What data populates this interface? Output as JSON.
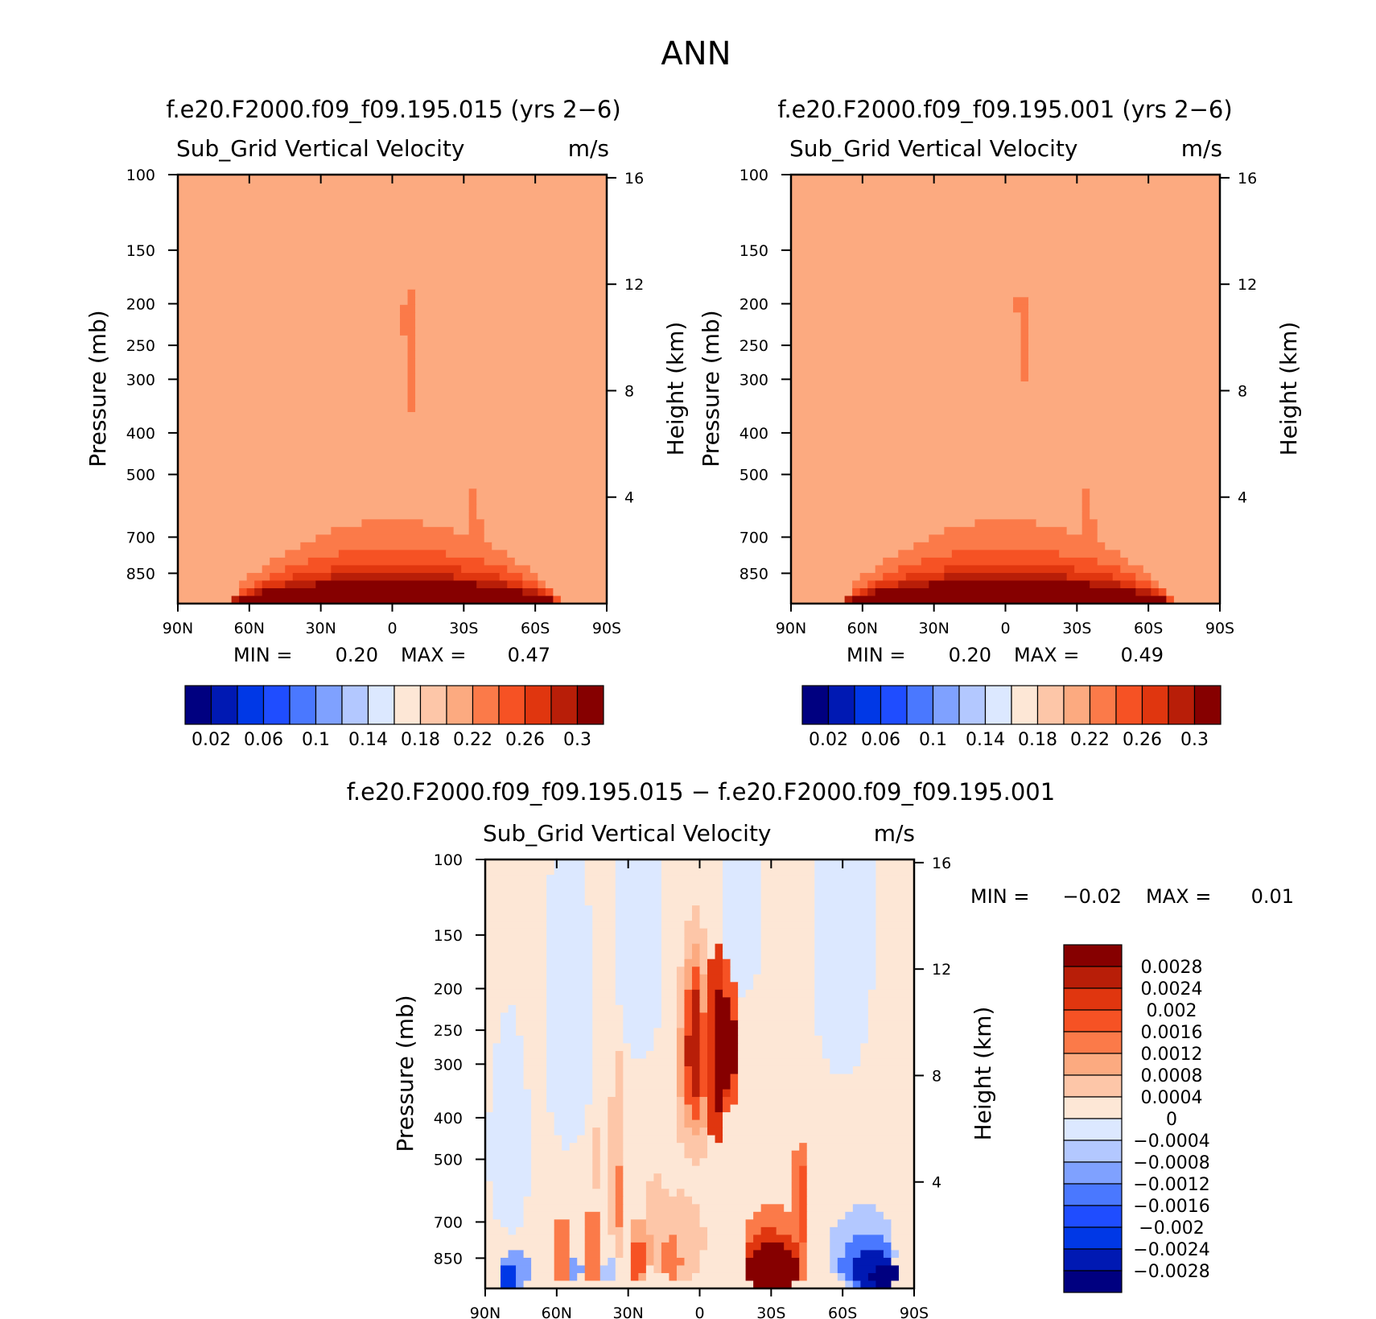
{
  "title": "ANN",
  "colormaps": {
    "abs": [
      "#000080",
      "#0019b3",
      "#0038e6",
      "#1f4dff",
      "#4a78ff",
      "#7fa1ff",
      "#b3c8ff",
      "#dce8ff",
      "#fde7d6",
      "#fdc6a8",
      "#fcaa80",
      "#fb7a49",
      "#f65224",
      "#e0360f",
      "#b81e08",
      "#860000"
    ],
    "diff": [
      "#000080",
      "#0019b3",
      "#0038e6",
      "#1f4dff",
      "#4a78ff",
      "#7fa1ff",
      "#b3c8ff",
      "#dce8ff",
      "#fde7d6",
      "#fdc6a8",
      "#fcaa80",
      "#fb7a49",
      "#f65224",
      "#e0360f",
      "#b81e08",
      "#860000"
    ]
  },
  "chart_data": [
    {
      "type": "heatmap",
      "panel": "case",
      "title": "f.e20.F2000.f09_f09.195.015 (yrs 2−6)",
      "variable": "Sub_Grid Vertical Velocity",
      "units": "m/s",
      "xlabel": "",
      "ylabel": "Pressure (mb)",
      "ylabel_right": "Height (km)",
      "x_ticks": [
        "90N",
        "60N",
        "30N",
        "0",
        "30S",
        "60S",
        "90S"
      ],
      "y_ticks": [
        100,
        150,
        200,
        250,
        300,
        400,
        500,
        700,
        850
      ],
      "ylim": [
        100,
        1000
      ],
      "height_ticks": [
        16,
        12,
        8,
        4
      ],
      "min_label": "MIN =",
      "min": "0.20",
      "max_label": "MAX =",
      "max": "0.47",
      "colorbar_levels": [
        0.02,
        0.04,
        0.06,
        0.08,
        0.1,
        0.12,
        0.14,
        0.16,
        0.18,
        0.2,
        0.22,
        0.24,
        0.26,
        0.28,
        0.3
      ],
      "colorbar_labels": [
        "0.02",
        "0.06",
        "0.1",
        "0.14",
        "0.18",
        "0.22",
        "0.26",
        "0.3"
      ],
      "field": {
        "base": 10,
        "jets": [
          {
            "lat": -8,
            "p_top": 185,
            "p_bot": 390,
            "w": 2.6,
            "level": 11
          },
          {
            "lat": -5.5,
            "p_top": 195,
            "p_bot": 260,
            "w": 1.4,
            "level": 11
          }
        ],
        "boundary": [
          {
            "lats": [
              -70,
              -50,
              -30,
              -12,
              12,
              30,
              50,
              68
            ],
            "levels": [
              11,
              12,
              13,
              14,
              15
            ],
            "p_tops": [
              640,
              745,
              810,
              850,
              880
            ]
          },
          {
            "lats": [
              -38,
              -34,
              -32
            ],
            "levels": [
              11
            ],
            "p_tops": [
              460
            ]
          }
        ]
      }
    },
    {
      "type": "heatmap",
      "panel": "control",
      "title": "f.e20.F2000.f09_f09.195.001 (yrs 2−6)",
      "variable": "Sub_Grid Vertical Velocity",
      "units": "m/s",
      "xlabel": "",
      "ylabel": "Pressure (mb)",
      "ylabel_right": "Height (km)",
      "x_ticks": [
        "90N",
        "60N",
        "30N",
        "0",
        "30S",
        "60S",
        "90S"
      ],
      "y_ticks": [
        100,
        150,
        200,
        250,
        300,
        400,
        500,
        700,
        850
      ],
      "ylim": [
        100,
        1000
      ],
      "height_ticks": [
        16,
        12,
        8,
        4
      ],
      "min_label": "MIN =",
      "min": "0.20",
      "max_label": "MAX =",
      "max": "0.49",
      "colorbar_levels": [
        0.02,
        0.04,
        0.06,
        0.08,
        0.1,
        0.12,
        0.14,
        0.16,
        0.18,
        0.2,
        0.22,
        0.24,
        0.26,
        0.28,
        0.3
      ],
      "colorbar_labels": [
        "0.02",
        "0.06",
        "0.1",
        "0.14",
        "0.18",
        "0.22",
        "0.26",
        "0.3"
      ],
      "field": {
        "base": 10,
        "jets": [
          {
            "lat": -8,
            "p_top": 190,
            "p_bot": 330,
            "w": 2.4,
            "level": 11
          },
          {
            "lat": -4.5,
            "p_top": 195,
            "p_bot": 215,
            "w": 1.0,
            "level": 11
          }
        ],
        "boundary": [
          {
            "lats": [
              -70,
              -50,
              -30,
              -12,
              12,
              30,
              50,
              68
            ],
            "levels": [
              11,
              12,
              13,
              14,
              15
            ],
            "p_tops": [
              640,
              745,
              810,
              850,
              880
            ]
          },
          {
            "lats": [
              -38,
              -34,
              -32
            ],
            "levels": [
              11
            ],
            "p_tops": [
              460
            ]
          }
        ]
      }
    },
    {
      "type": "heatmap",
      "panel": "difference",
      "title": "f.e20.F2000.f09_f09.195.015 − f.e20.F2000.f09_f09.195.001",
      "variable": "Sub_Grid Vertical Velocity",
      "units": "m/s",
      "xlabel": "",
      "ylabel": "Pressure (mb)",
      "ylabel_right": "Height (km)",
      "x_ticks": [
        "90N",
        "60N",
        "30N",
        "0",
        "30S",
        "60S",
        "90S"
      ],
      "y_ticks": [
        100,
        150,
        200,
        250,
        300,
        400,
        500,
        700,
        850
      ],
      "ylim": [
        100,
        1000
      ],
      "height_ticks": [
        16,
        12,
        8,
        4
      ],
      "min_label": "MIN =",
      "min": "−0.02",
      "max_label": "MAX =",
      "max": "0.01",
      "colorbar_levels": [
        -0.0028,
        -0.0024,
        -0.002,
        -0.0016,
        -0.0012,
        -0.0008,
        -0.0004,
        0,
        0.0004,
        0.0008,
        0.0012,
        0.0016,
        0.002,
        0.0024,
        0.0028
      ],
      "colorbar_labels": [
        "0.0028",
        "0.0024",
        "0.002",
        "0.0016",
        "0.0012",
        "0.0008",
        "0.0004",
        "0",
        "−0.0004",
        "−0.0008",
        "−0.0012",
        "−0.0016",
        "−0.002",
        "−0.0024",
        "−0.0028"
      ],
      "field": {
        "base": 8,
        "blobs": [
          {
            "lat": -60,
            "lon_hw": 13,
            "p": 150,
            "p_hw": 170,
            "level": 7
          },
          {
            "lat": -18,
            "lon_hw": 9,
            "p": 120,
            "p_hw": 90,
            "level": 7
          },
          {
            "lat": 25,
            "lon_hw": 10,
            "p": 160,
            "p_hw": 130,
            "level": 7
          },
          {
            "lat": 55,
            "lon_hw": 10,
            "p": 250,
            "p_hw": 220,
            "level": 7
          },
          {
            "lat": 80,
            "lon_hw": 9,
            "p": 480,
            "p_hw": 260,
            "level": 7
          },
          {
            "lat": 2,
            "lon_hw": 9,
            "p": 320,
            "p_hw": 190,
            "level": 9
          },
          {
            "lat": 2,
            "lon_hw": 6.5,
            "p": 300,
            "p_hw": 140,
            "level": 10
          },
          {
            "lat": 2,
            "lon_hw": 4.5,
            "p": 290,
            "p_hw": 110,
            "level": 12
          },
          {
            "lat": 2,
            "lon_hw": 3,
            "p": 280,
            "p_hw": 80,
            "level": 14
          },
          {
            "lat": -7,
            "lon_hw": 4.5,
            "p": 305,
            "p_hw": 150,
            "level": 13
          },
          {
            "lat": -8,
            "lon_hw": 2.5,
            "p": 300,
            "p_hw": 95,
            "level": 15
          },
          {
            "lat": -11,
            "lon_hw": 5.5,
            "p": 280,
            "p_hw": 110,
            "level": 12
          },
          {
            "lat": -12,
            "lon_hw": 3,
            "p": 275,
            "p_hw": 70,
            "level": 15
          },
          {
            "lat": 35,
            "lon_hw": 2.5,
            "p": 560,
            "p_hw": 320,
            "level": 9
          },
          {
            "lat": 35,
            "lon_hw": 1.4,
            "p": 620,
            "p_hw": 240,
            "level": 11
          },
          {
            "lat": 42,
            "lon_hw": 1.5,
            "p": 500,
            "p_hw": 200,
            "level": 9
          },
          {
            "lat": 18,
            "lon_hw": 5,
            "p": 720,
            "p_hw": 190,
            "level": 9
          },
          {
            "lat": 8,
            "lon_hw": 10,
            "p": 770,
            "p_hw": 180,
            "level": 9
          },
          {
            "lat": 12,
            "lon_hw": 4,
            "p": 860,
            "p_hw": 100,
            "level": 11
          },
          {
            "lat": 25,
            "lon_hw": 5,
            "p": 820,
            "p_hw": 140,
            "level": 10
          },
          {
            "lat": 26,
            "lon_hw": 3,
            "p": 860,
            "p_hw": 90,
            "level": 12
          },
          {
            "lat": 45,
            "lon_hw": 3,
            "p": 800,
            "p_hw": 170,
            "level": 11
          },
          {
            "lat": 45,
            "lon_hw": 1.5,
            "p": 830,
            "p_hw": 120,
            "level": 14
          },
          {
            "lat": 58,
            "lon_hw": 3,
            "p": 820,
            "p_hw": 150,
            "level": 11
          },
          {
            "lat": 61,
            "lon_hw": 1.5,
            "p": 850,
            "p_hw": 110,
            "level": 14
          },
          {
            "lat": -42,
            "lon_hw": 3.5,
            "p": 700,
            "p_hw": 270,
            "level": 11
          },
          {
            "lat": -42,
            "lon_hw": 1.8,
            "p": 650,
            "p_hw": 220,
            "level": 12
          },
          {
            "lat": -30,
            "lon_hw": 12,
            "p": 820,
            "p_hw": 180,
            "level": 11
          },
          {
            "lat": -30,
            "lon_hw": 12,
            "p": 870,
            "p_hw": 140,
            "level": 13
          },
          {
            "lat": -30,
            "lon_hw": 11,
            "p": 900,
            "p_hw": 120,
            "level": 15
          },
          {
            "lat": 78,
            "lon_hw": 7,
            "p": 920,
            "p_hw": 100,
            "level": 5
          },
          {
            "lat": 80,
            "lon_hw": 4,
            "p": 930,
            "p_hw": 60,
            "level": 2
          },
          {
            "lat": 52,
            "lon_hw": 2.2,
            "p": 910,
            "p_hw": 60,
            "level": 5
          },
          {
            "lat": 38,
            "lon_hw": 2.5,
            "p": 920,
            "p_hw": 60,
            "level": 6
          },
          {
            "lat": -68,
            "lon_hw": 14,
            "p": 820,
            "p_hw": 180,
            "level": 6
          },
          {
            "lat": -70,
            "lon_hw": 11,
            "p": 870,
            "p_hw": 130,
            "level": 4
          },
          {
            "lat": -72,
            "lon_hw": 9,
            "p": 900,
            "p_hw": 90,
            "level": 1
          },
          {
            "lat": -78,
            "lon_hw": 6,
            "p": 930,
            "p_hw": 60,
            "level": 0
          }
        ]
      }
    }
  ]
}
